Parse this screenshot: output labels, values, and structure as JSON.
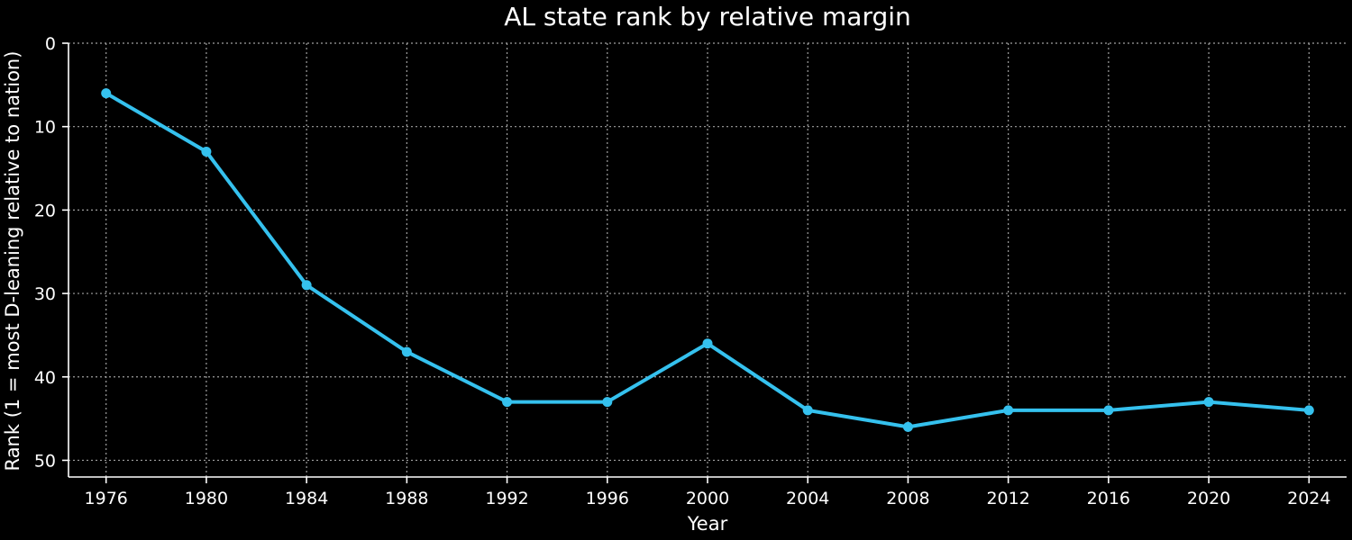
{
  "chart_data": {
    "type": "line",
    "title": "AL state rank by relative margin",
    "xlabel": "Year",
    "ylabel": "Rank (1 = most D-leaning relative to nation)",
    "x": [
      1976,
      1980,
      1984,
      1988,
      1992,
      1996,
      2000,
      2004,
      2008,
      2012,
      2016,
      2020,
      2024
    ],
    "series": [
      {
        "values": [
          6,
          13,
          29,
          37,
          43,
          43,
          36,
          44,
          46,
          44,
          44,
          43,
          44
        ],
        "color": "#35c1ee"
      }
    ],
    "xticks": [
      1976,
      1980,
      1984,
      1988,
      1992,
      1996,
      2000,
      2004,
      2008,
      2012,
      2016,
      2020,
      2024
    ],
    "yticks": [
      0,
      10,
      20,
      30,
      40,
      50
    ],
    "ylim": [
      0,
      52
    ],
    "y_inverted": true,
    "grid": true,
    "background": "#000000"
  }
}
